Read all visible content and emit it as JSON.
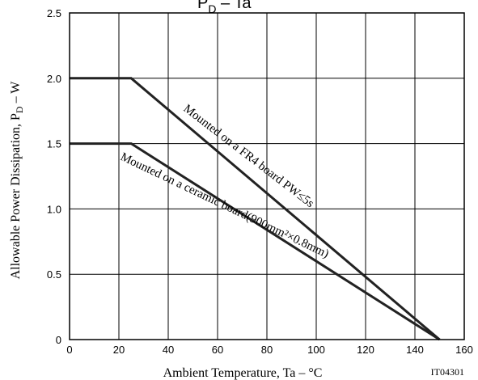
{
  "chart_data": {
    "type": "line",
    "title": "P",
    "title_sub": "D",
    "title_rest": " – Ta",
    "xlabel": "Ambient Temperature, Ta  –  °C",
    "ylabel_pre": "Allowable Power Dissipation, P",
    "ylabel_sub": "D",
    "ylabel_post": "  –  W",
    "xlim": [
      0,
      160
    ],
    "ylim": [
      0,
      2.5
    ],
    "xticks": [
      "0",
      "20",
      "40",
      "60",
      "80",
      "100",
      "120",
      "140",
      "160"
    ],
    "yticks": [
      "0",
      "0.5",
      "1.0",
      "1.5",
      "2.0",
      "2.5"
    ],
    "grid": true,
    "series": [
      {
        "name": "Mounted on a FR4 board PW≤5s",
        "x": [
          0,
          25,
          150
        ],
        "y": [
          2.0,
          2.0,
          0
        ]
      },
      {
        "name": "Mounted on a ceramic board(900mm²×0.8mm)",
        "x": [
          0,
          25,
          150
        ],
        "y": [
          1.5,
          1.5,
          0
        ]
      }
    ],
    "code": "IT04301"
  }
}
